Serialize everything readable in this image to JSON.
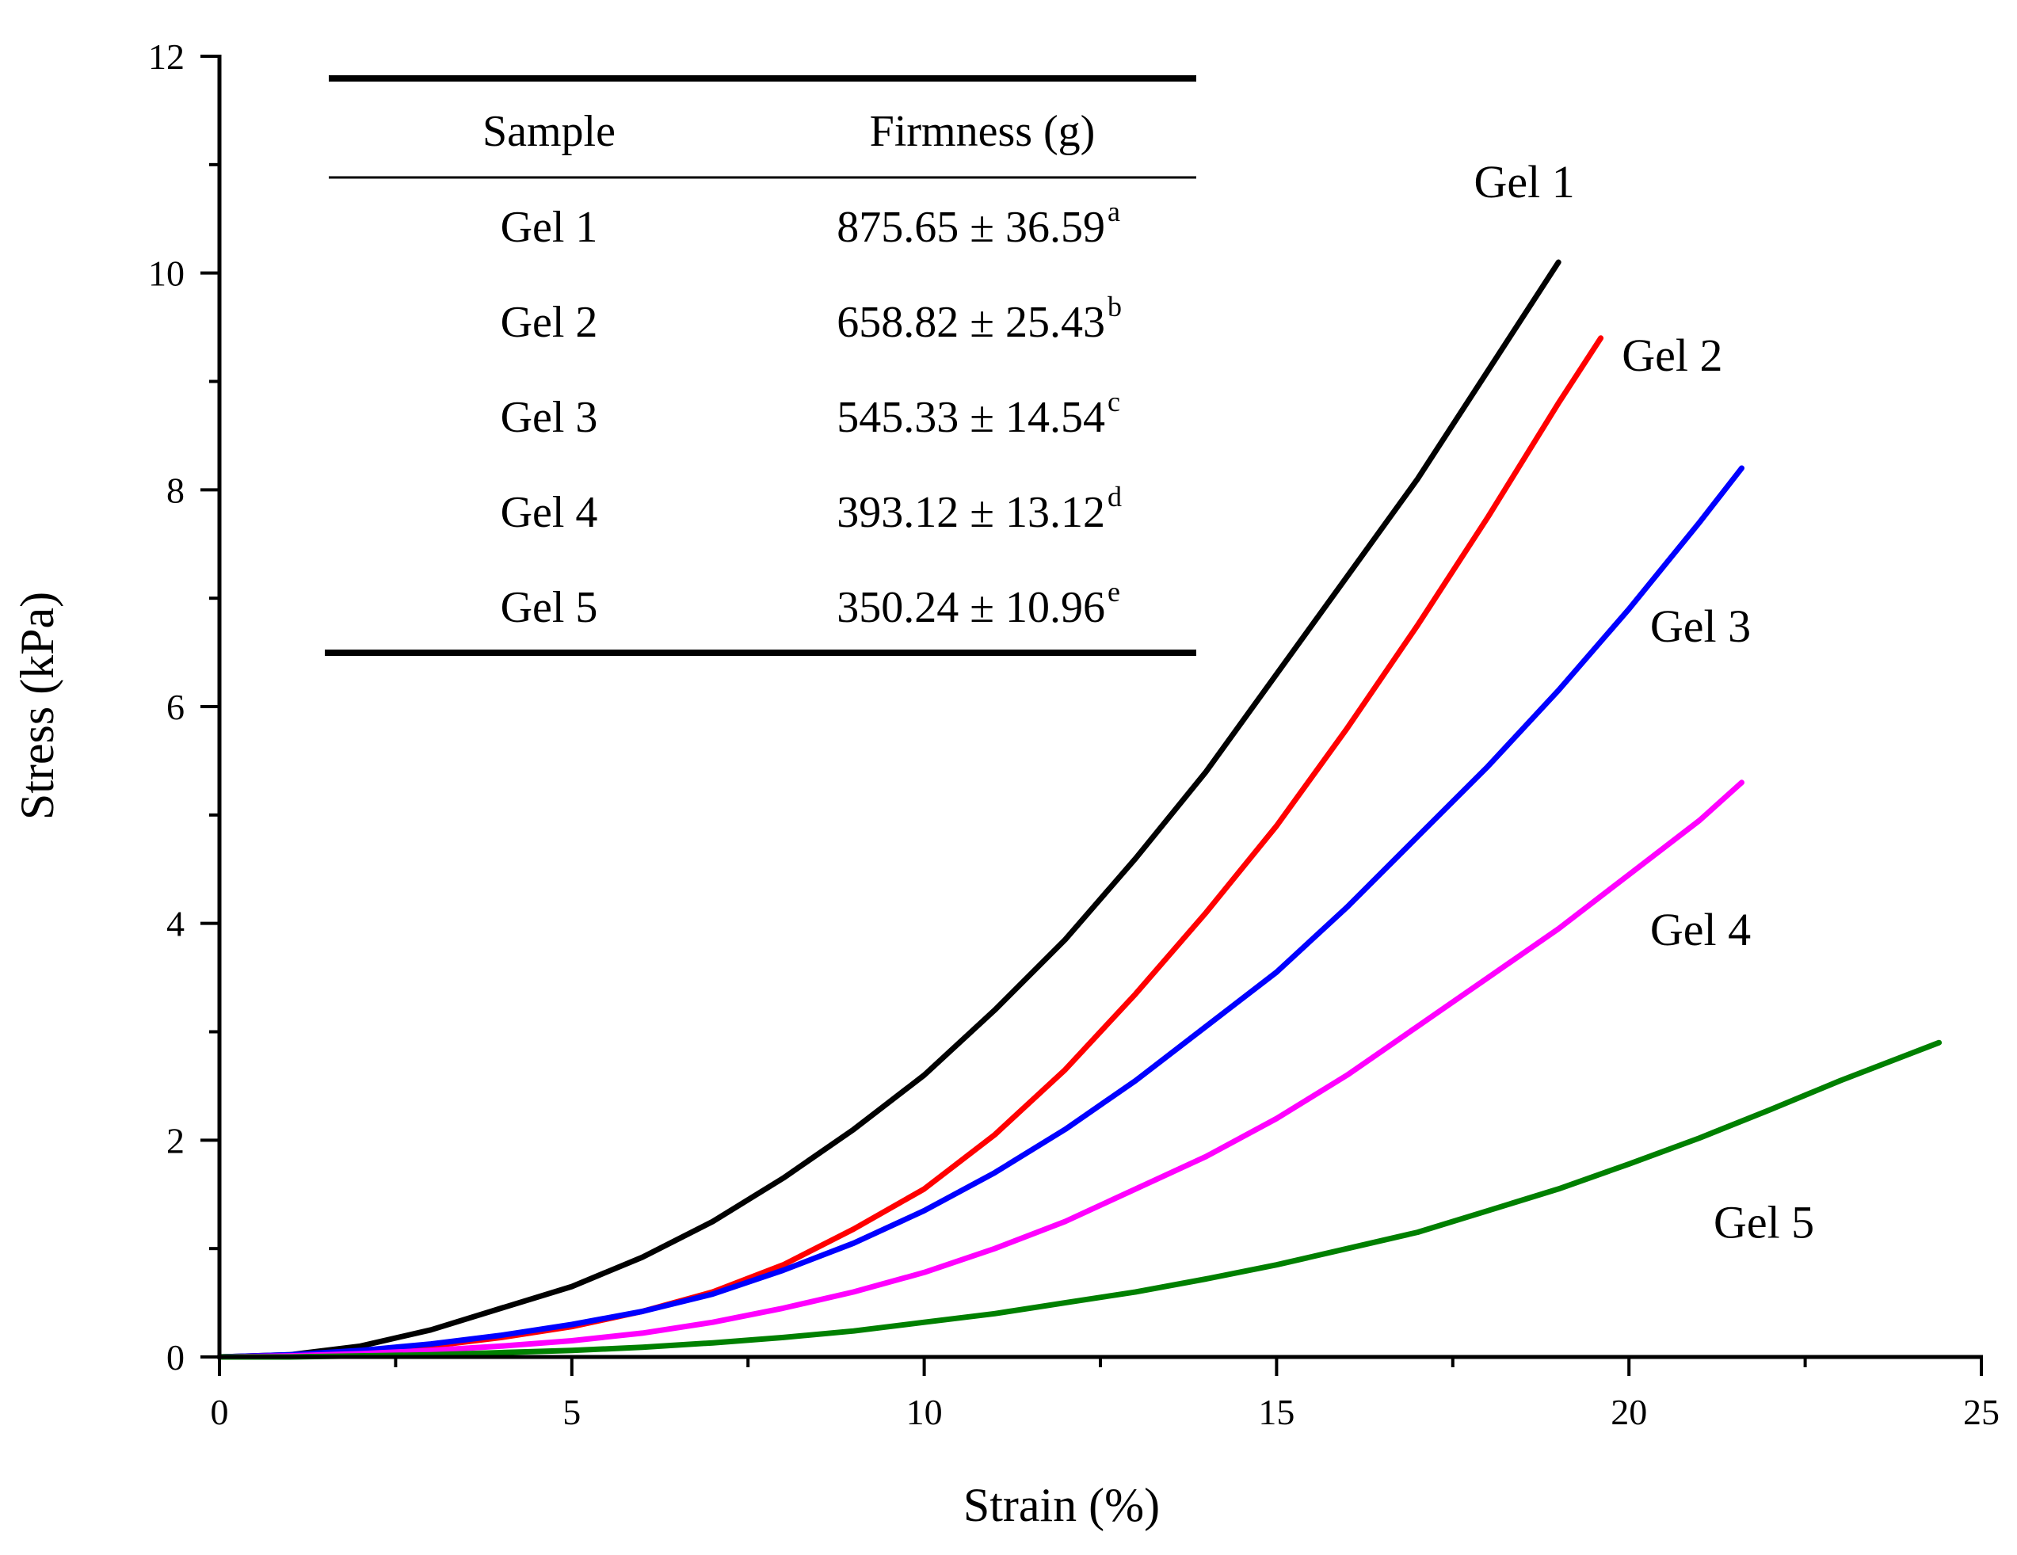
{
  "chart_data": {
    "type": "line",
    "xlabel": "Strain (%)",
    "ylabel": "Stress (kPa)",
    "xlim": [
      0,
      25
    ],
    "ylim": [
      0,
      12
    ],
    "xticks": [
      0,
      5,
      10,
      15,
      20,
      25
    ],
    "yticks": [
      0,
      2,
      4,
      6,
      8,
      10,
      12
    ],
    "xtick_labels": [
      "0",
      "5",
      "10",
      "15",
      "20",
      "25"
    ],
    "ytick_labels": [
      "0",
      "2",
      "4",
      "6",
      "8",
      "10",
      "12"
    ],
    "grid": false,
    "series": [
      {
        "name": "Gel 1",
        "color": "#000000",
        "x": [
          0,
          1,
          2,
          3,
          4,
          5,
          6,
          7,
          8,
          9,
          10,
          11,
          12,
          13,
          14,
          15,
          16,
          17,
          18,
          19
        ],
        "y": [
          0,
          0.02,
          0.1,
          0.25,
          0.45,
          0.65,
          0.92,
          1.25,
          1.65,
          2.1,
          2.6,
          3.2,
          3.85,
          4.6,
          5.4,
          6.3,
          7.2,
          8.1,
          9.1,
          10.1
        ]
      },
      {
        "name": "Gel 2",
        "color": "#ff0000",
        "x": [
          0,
          1,
          2,
          3,
          4,
          5,
          6,
          7,
          8,
          9,
          10,
          11,
          12,
          13,
          14,
          15,
          16,
          17,
          18,
          19,
          19.6
        ],
        "y": [
          0,
          0.01,
          0.04,
          0.1,
          0.18,
          0.28,
          0.42,
          0.6,
          0.85,
          1.18,
          1.55,
          2.05,
          2.65,
          3.35,
          4.1,
          4.9,
          5.8,
          6.75,
          7.75,
          8.8,
          9.4
        ]
      },
      {
        "name": "Gel 3",
        "color": "#0000ff",
        "x": [
          0,
          1,
          2,
          3,
          4,
          5,
          6,
          7,
          8,
          9,
          10,
          11,
          12,
          13,
          14,
          15,
          16,
          17,
          18,
          19,
          20,
          21,
          21.6
        ],
        "y": [
          0,
          0.02,
          0.06,
          0.12,
          0.2,
          0.3,
          0.42,
          0.58,
          0.8,
          1.05,
          1.35,
          1.7,
          2.1,
          2.55,
          3.05,
          3.55,
          4.15,
          4.8,
          5.45,
          6.15,
          6.9,
          7.7,
          8.2
        ]
      },
      {
        "name": "Gel 4",
        "color": "#ff00ff",
        "x": [
          0,
          1,
          2,
          3,
          4,
          5,
          6,
          7,
          8,
          9,
          10,
          11,
          12,
          13,
          14,
          15,
          16,
          17,
          18,
          19,
          20,
          21,
          21.6
        ],
        "y": [
          0,
          0.01,
          0.03,
          0.06,
          0.1,
          0.15,
          0.22,
          0.32,
          0.45,
          0.6,
          0.78,
          1.0,
          1.25,
          1.55,
          1.85,
          2.2,
          2.6,
          3.05,
          3.5,
          3.95,
          4.45,
          4.95,
          5.3
        ]
      },
      {
        "name": "Gel 5",
        "color": "#008000",
        "x": [
          0,
          1,
          2,
          3,
          4,
          5,
          6,
          7,
          8,
          9,
          10,
          11,
          12,
          13,
          14,
          15,
          16,
          17,
          18,
          19,
          20,
          21,
          22,
          23,
          24,
          24.4
        ],
        "y": [
          0,
          0.0,
          0.01,
          0.02,
          0.04,
          0.06,
          0.09,
          0.13,
          0.18,
          0.24,
          0.32,
          0.4,
          0.5,
          0.6,
          0.72,
          0.85,
          1.0,
          1.15,
          1.35,
          1.55,
          1.78,
          2.02,
          2.28,
          2.55,
          2.8,
          2.9
        ]
      }
    ],
    "annotations": [
      {
        "text": "Gel 1",
        "x": 17.8,
        "y": 10.7
      },
      {
        "text": "Gel 2",
        "x": 19.9,
        "y": 9.1
      },
      {
        "text": "Gel 3",
        "x": 20.3,
        "y": 6.6
      },
      {
        "text": "Gel 4",
        "x": 20.3,
        "y": 3.8
      },
      {
        "text": "Gel 5",
        "x": 21.2,
        "y": 1.1
      }
    ],
    "inset_table": {
      "headers": [
        "Sample",
        "Firmness (g)"
      ],
      "rows": [
        {
          "sample": "Gel 1",
          "firmness": "875.65 ± 36.59",
          "sup": "a"
        },
        {
          "sample": "Gel 2",
          "firmness": "658.82 ± 25.43",
          "sup": "b"
        },
        {
          "sample": "Gel 3",
          "firmness": "545.33 ± 14.54",
          "sup": "c"
        },
        {
          "sample": "Gel 4",
          "firmness": "393.12 ± 13.12",
          "sup": "d"
        },
        {
          "sample": "Gel 5",
          "firmness": "350.24 ± 10.96",
          "sup": "e"
        }
      ]
    }
  }
}
